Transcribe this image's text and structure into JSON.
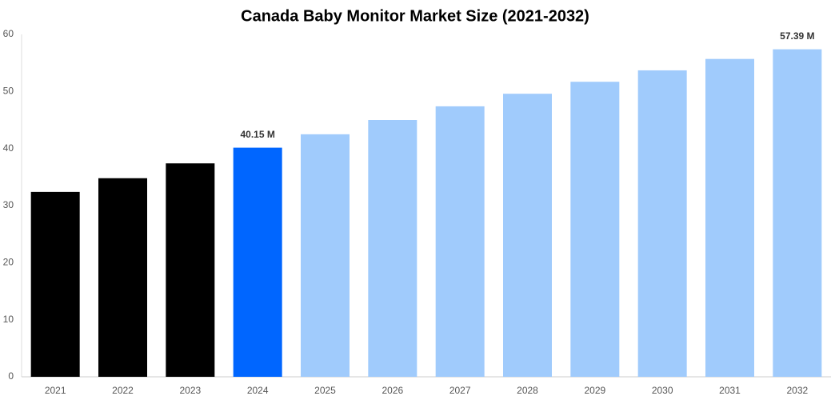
{
  "chart_data": {
    "type": "bar",
    "title": "Canada Baby Monitor Market Size (2021-2032)",
    "categories": [
      "2021",
      "2022",
      "2023",
      "2024",
      "2025",
      "2026",
      "2027",
      "2028",
      "2029",
      "2030",
      "2031",
      "2032"
    ],
    "values": [
      32.4,
      34.8,
      37.4,
      40.15,
      42.5,
      45.0,
      47.4,
      49.6,
      51.7,
      53.7,
      55.7,
      57.39
    ],
    "value_labels": [
      null,
      null,
      null,
      "40.15 M",
      null,
      null,
      null,
      null,
      null,
      null,
      null,
      "57.39 M"
    ],
    "colors": [
      "#000000",
      "#000000",
      "#000000",
      "#0066ff",
      "#a0cbfc",
      "#a0cbfc",
      "#a0cbfc",
      "#a0cbfc",
      "#a0cbfc",
      "#a0cbfc",
      "#a0cbfc",
      "#a0cbfc"
    ],
    "ylim": [
      0,
      60
    ],
    "yticks": [
      0,
      10,
      20,
      30,
      40,
      50,
      60
    ],
    "grid": false
  }
}
